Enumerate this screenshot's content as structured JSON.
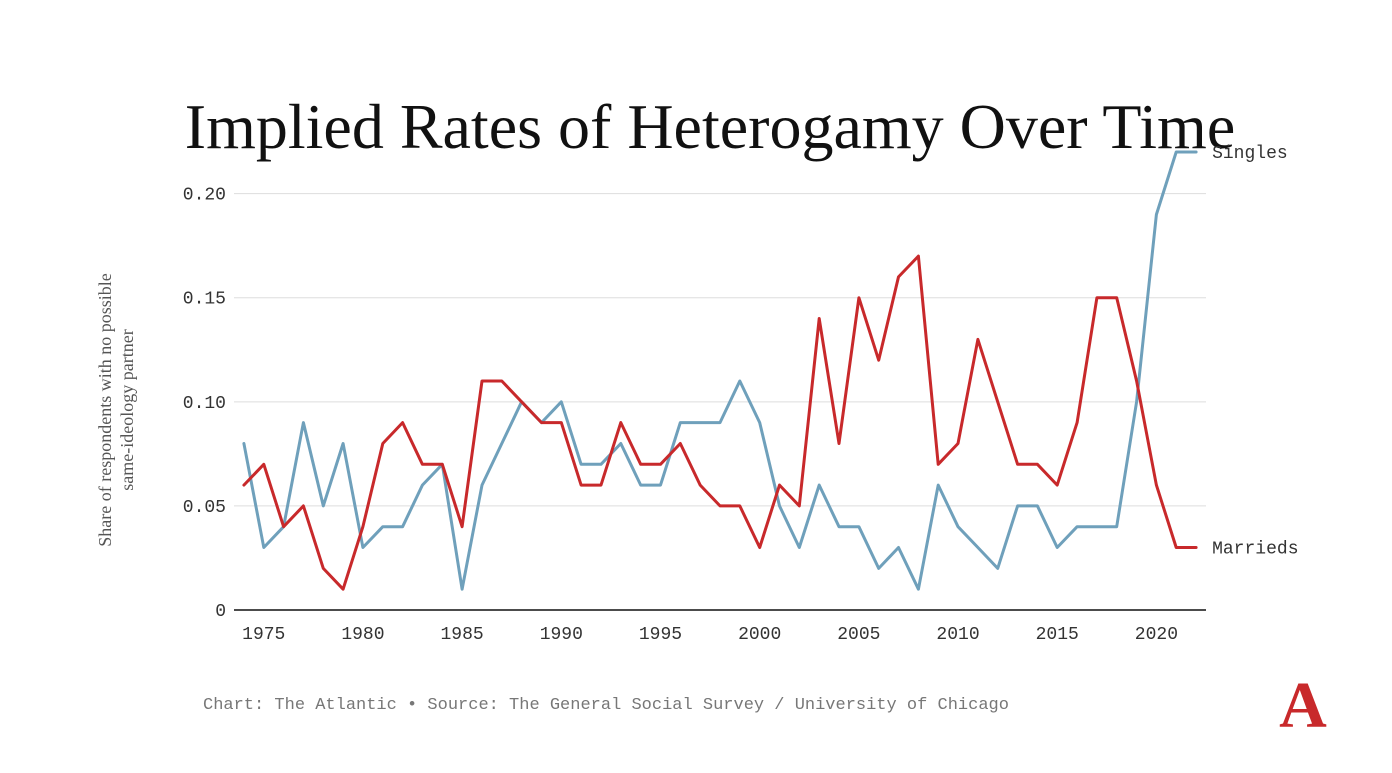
{
  "chart_data": {
    "type": "line",
    "title": "Implied Rates of Heterogamy Over Time",
    "ylabel_lines": [
      "Share of respondents with no possible",
      "same-ideology partner"
    ],
    "xlabel": "",
    "ylim": [
      0,
      0.22
    ],
    "xlim": [
      1973.5,
      2022.5
    ],
    "y_ticks": [
      {
        "value": 0,
        "label": "0"
      },
      {
        "value": 0.05,
        "label": "0.05"
      },
      {
        "value": 0.1,
        "label": "0.10"
      },
      {
        "value": 0.15,
        "label": "0.15"
      },
      {
        "value": 0.2,
        "label": "0.20"
      }
    ],
    "x_ticks": [
      {
        "value": 1975,
        "label": "1975"
      },
      {
        "value": 1980,
        "label": "1980"
      },
      {
        "value": 1985,
        "label": "1985"
      },
      {
        "value": 1990,
        "label": "1990"
      },
      {
        "value": 1995,
        "label": "1995"
      },
      {
        "value": 2000,
        "label": "2000"
      },
      {
        "value": 2005,
        "label": "2005"
      },
      {
        "value": 2010,
        "label": "2010"
      },
      {
        "value": 2015,
        "label": "2015"
      },
      {
        "value": 2020,
        "label": "2020"
      }
    ],
    "grid": true,
    "legend": "direct labels at right end of lines",
    "series": [
      {
        "name": "Singles",
        "color": "#6fa0bb",
        "points": [
          [
            1974,
            0.08
          ],
          [
            1975,
            0.03
          ],
          [
            1976,
            0.04
          ],
          [
            1977,
            0.09
          ],
          [
            1978,
            0.05
          ],
          [
            1979,
            0.08
          ],
          [
            1980,
            0.03
          ],
          [
            1981,
            0.04
          ],
          [
            1982,
            0.04
          ],
          [
            1983,
            0.06
          ],
          [
            1984,
            0.07
          ],
          [
            1985,
            0.01
          ],
          [
            1986,
            0.06
          ],
          [
            1987,
            0.08
          ],
          [
            1988,
            0.1
          ],
          [
            1989,
            0.09
          ],
          [
            1990,
            0.1
          ],
          [
            1991,
            0.07
          ],
          [
            1992,
            0.07
          ],
          [
            1993,
            0.08
          ],
          [
            1994,
            0.06
          ],
          [
            1995,
            0.06
          ],
          [
            1996,
            0.09
          ],
          [
            1997,
            0.09
          ],
          [
            1998,
            0.09
          ],
          [
            1999,
            0.11
          ],
          [
            2000,
            0.09
          ],
          [
            2001,
            0.05
          ],
          [
            2002,
            0.03
          ],
          [
            2003,
            0.06
          ],
          [
            2004,
            0.04
          ],
          [
            2005,
            0.04
          ],
          [
            2006,
            0.02
          ],
          [
            2007,
            0.03
          ],
          [
            2008,
            0.01
          ],
          [
            2009,
            0.06
          ],
          [
            2010,
            0.04
          ],
          [
            2011,
            0.03
          ],
          [
            2012,
            0.02
          ],
          [
            2013,
            0.05
          ],
          [
            2014,
            0.05
          ],
          [
            2015,
            0.03
          ],
          [
            2016,
            0.04
          ],
          [
            2017,
            0.04
          ],
          [
            2018,
            0.04
          ],
          [
            2019,
            0.1
          ],
          [
            2020,
            0.19
          ],
          [
            2021,
            0.22
          ],
          [
            2022,
            0.22
          ]
        ]
      },
      {
        "name": "Marrieds",
        "color": "#c8292b",
        "points": [
          [
            1974,
            0.06
          ],
          [
            1975,
            0.07
          ],
          [
            1976,
            0.04
          ],
          [
            1977,
            0.05
          ],
          [
            1978,
            0.02
          ],
          [
            1979,
            0.01
          ],
          [
            1980,
            0.04
          ],
          [
            1981,
            0.08
          ],
          [
            1982,
            0.09
          ],
          [
            1983,
            0.07
          ],
          [
            1984,
            0.07
          ],
          [
            1985,
            0.04
          ],
          [
            1986,
            0.11
          ],
          [
            1987,
            0.11
          ],
          [
            1988,
            0.1
          ],
          [
            1989,
            0.09
          ],
          [
            1990,
            0.09
          ],
          [
            1991,
            0.06
          ],
          [
            1992,
            0.06
          ],
          [
            1993,
            0.09
          ],
          [
            1994,
            0.07
          ],
          [
            1995,
            0.07
          ],
          [
            1996,
            0.08
          ],
          [
            1997,
            0.06
          ],
          [
            1998,
            0.05
          ],
          [
            1999,
            0.05
          ],
          [
            2000,
            0.03
          ],
          [
            2001,
            0.06
          ],
          [
            2002,
            0.05
          ],
          [
            2003,
            0.14
          ],
          [
            2004,
            0.08
          ],
          [
            2005,
            0.15
          ],
          [
            2006,
            0.12
          ],
          [
            2007,
            0.16
          ],
          [
            2008,
            0.17
          ],
          [
            2009,
            0.07
          ],
          [
            2010,
            0.08
          ],
          [
            2011,
            0.13
          ],
          [
            2012,
            0.1
          ],
          [
            2013,
            0.07
          ],
          [
            2014,
            0.07
          ],
          [
            2015,
            0.06
          ],
          [
            2016,
            0.09
          ],
          [
            2017,
            0.15
          ],
          [
            2018,
            0.15
          ],
          [
            2019,
            0.11
          ],
          [
            2020,
            0.06
          ],
          [
            2021,
            0.03
          ],
          [
            2022,
            0.03
          ]
        ]
      }
    ]
  },
  "footer": {
    "source": "Chart: The Atlantic • Source: The General Social Survey / University of Chicago"
  },
  "logo": {
    "letter": "A",
    "color": "#c8292b"
  }
}
